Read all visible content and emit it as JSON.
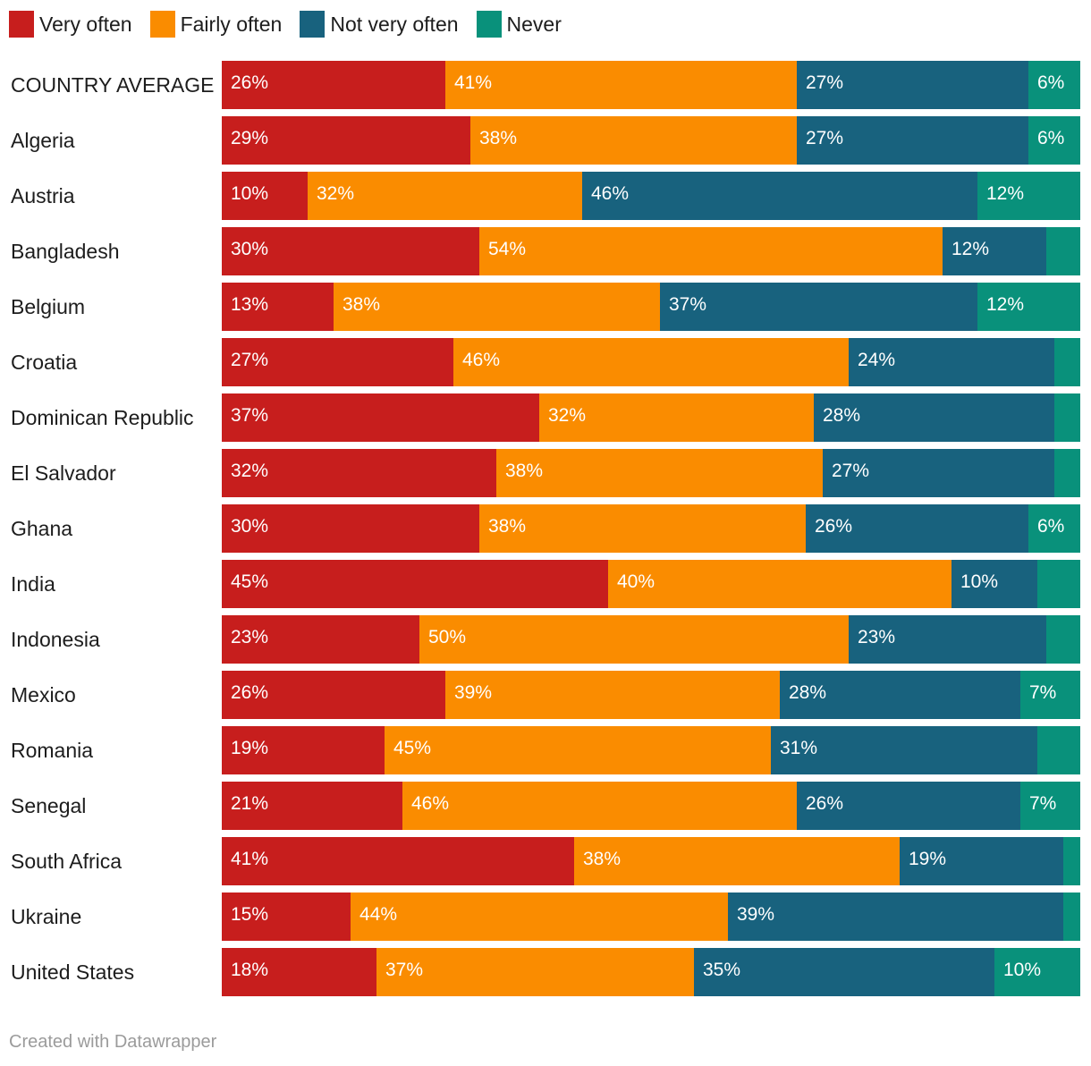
{
  "legend": [
    {
      "label": "Very often",
      "color": "#c71e1d"
    },
    {
      "label": "Fairly often",
      "color": "#fa8c00"
    },
    {
      "label": "Not very often",
      "color": "#18627e"
    },
    {
      "label": "Never",
      "color": "#09917b"
    }
  ],
  "chart_data": {
    "type": "bar",
    "orientation": "horizontal",
    "stacked": true,
    "unit": "%",
    "categories": [
      "COUNTRY AVERAGE",
      "Algeria",
      "Austria",
      "Bangladesh",
      "Belgium",
      "Croatia",
      "Dominican Republic",
      "El Salvador",
      "Ghana",
      "India",
      "Indonesia",
      "Mexico",
      "Romania",
      "Senegal",
      "South Africa",
      "Ukraine",
      "United States"
    ],
    "series": [
      {
        "name": "Very often",
        "color": "#c71e1d",
        "values": [
          26,
          29,
          10,
          30,
          13,
          27,
          37,
          32,
          30,
          45,
          23,
          26,
          19,
          21,
          41,
          15,
          18
        ]
      },
      {
        "name": "Fairly often",
        "color": "#fa8c00",
        "values": [
          41,
          38,
          32,
          54,
          38,
          46,
          32,
          38,
          38,
          40,
          50,
          39,
          45,
          46,
          38,
          44,
          37
        ]
      },
      {
        "name": "Not very often",
        "color": "#18627e",
        "values": [
          27,
          27,
          46,
          12,
          37,
          24,
          28,
          27,
          26,
          10,
          23,
          28,
          31,
          26,
          19,
          39,
          35
        ]
      },
      {
        "name": "Never",
        "color": "#09917b",
        "values": [
          6,
          6,
          12,
          4,
          12,
          3,
          3,
          3,
          6,
          5,
          4,
          7,
          5,
          7,
          2,
          2,
          10
        ]
      }
    ],
    "data_labels": [
      [
        "26%",
        "41%",
        "27%",
        "6%"
      ],
      [
        "29%",
        "38%",
        "27%",
        "6%"
      ],
      [
        "10%",
        "32%",
        "46%",
        "12%"
      ],
      [
        "30%",
        "54%",
        "12%",
        ""
      ],
      [
        "13%",
        "38%",
        "37%",
        "12%"
      ],
      [
        "27%",
        "46%",
        "24%",
        ""
      ],
      [
        "37%",
        "32%",
        "28%",
        ""
      ],
      [
        "32%",
        "38%",
        "27%",
        ""
      ],
      [
        "30%",
        "38%",
        "26%",
        "6%"
      ],
      [
        "45%",
        "40%",
        "10%",
        ""
      ],
      [
        "23%",
        "50%",
        "23%",
        ""
      ],
      [
        "26%",
        "39%",
        "28%",
        "7%"
      ],
      [
        "19%",
        "45%",
        "31%",
        ""
      ],
      [
        "21%",
        "46%",
        "26%",
        "7%"
      ],
      [
        "41%",
        "38%",
        "19%",
        ""
      ],
      [
        "15%",
        "44%",
        "39%",
        ""
      ],
      [
        "18%",
        "37%",
        "35%",
        "10%"
      ]
    ],
    "xlim": [
      0,
      100
    ]
  },
  "footer": {
    "credit": "Created with Datawrapper"
  }
}
